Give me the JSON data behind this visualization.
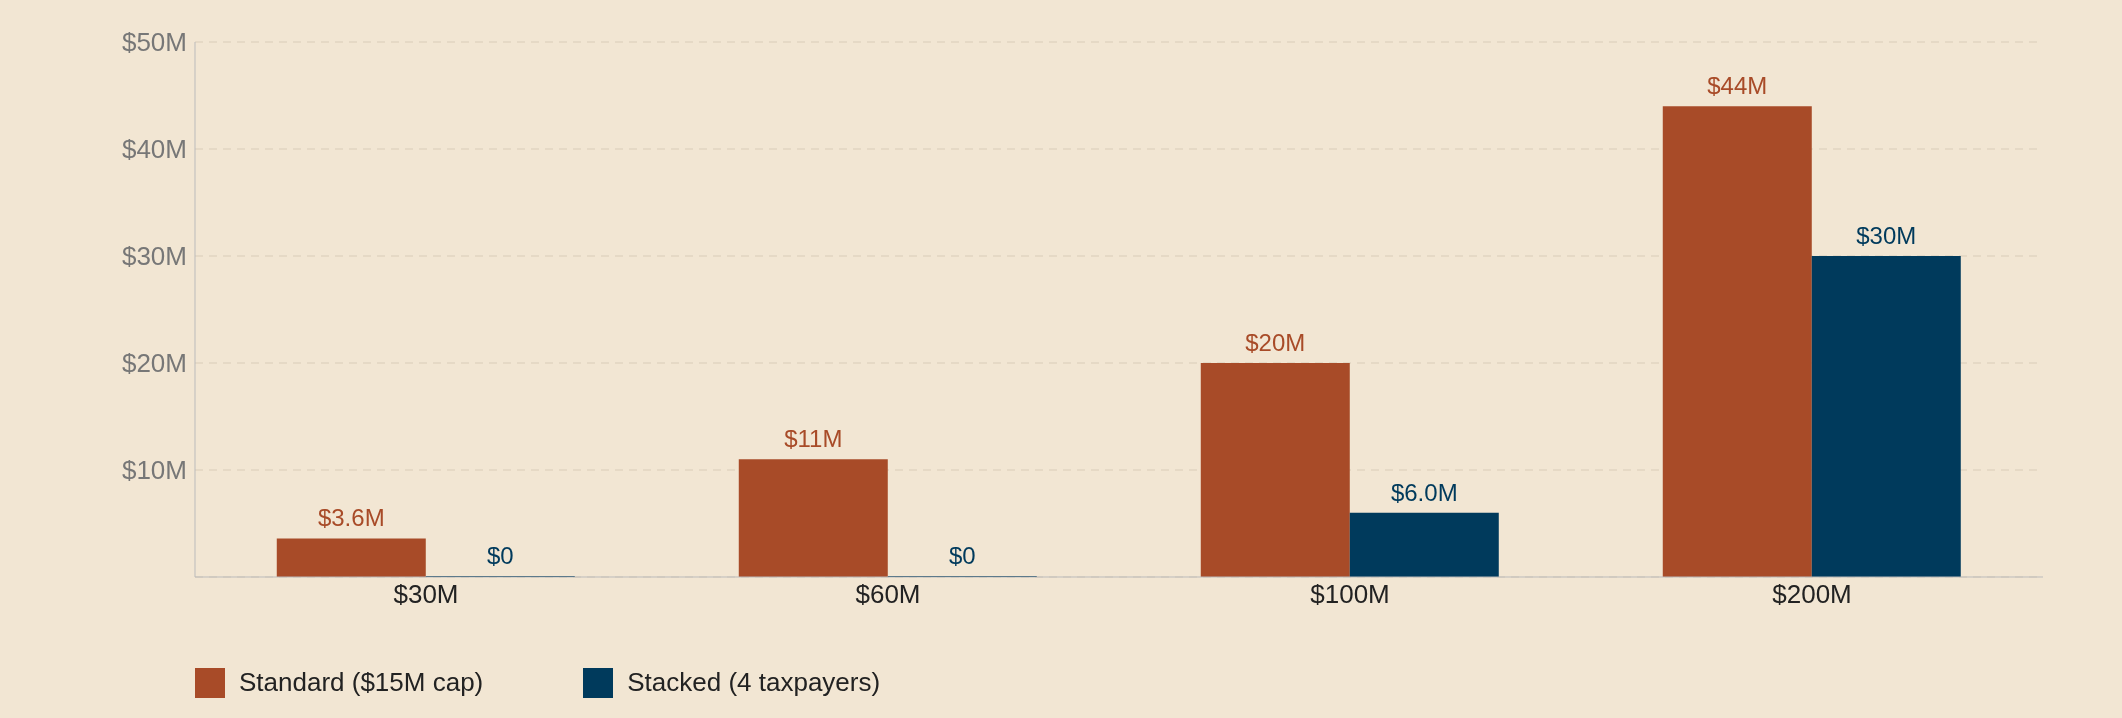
{
  "chart_data": {
    "type": "bar",
    "categories": [
      "$30M",
      "$60M",
      "$100M",
      "$200M"
    ],
    "series": [
      {
        "name": "Standard ($15M cap)",
        "color": "#a84b28",
        "values": [
          3.6,
          11,
          20,
          44
        ],
        "value_labels": [
          "$3.6M",
          "$11M",
          "$20M",
          "$44M"
        ]
      },
      {
        "name": "Stacked (4 taxpayers)",
        "color": "#003a5c",
        "values": [
          0,
          0,
          6.0,
          30
        ],
        "value_labels": [
          "$0",
          "$0",
          "$6.0M",
          "$30M"
        ]
      }
    ],
    "ylim": [
      0,
      50
    ],
    "yticks": [
      {
        "value": 0,
        "label": null
      },
      {
        "value": 10,
        "label": "$10M"
      },
      {
        "value": 20,
        "label": "$20M"
      },
      {
        "value": 30,
        "label": "$30M"
      },
      {
        "value": 40,
        "label": "$40M"
      },
      {
        "value": 50,
        "label": "$50M"
      }
    ],
    "grid": "y",
    "legend": "bottom left"
  }
}
